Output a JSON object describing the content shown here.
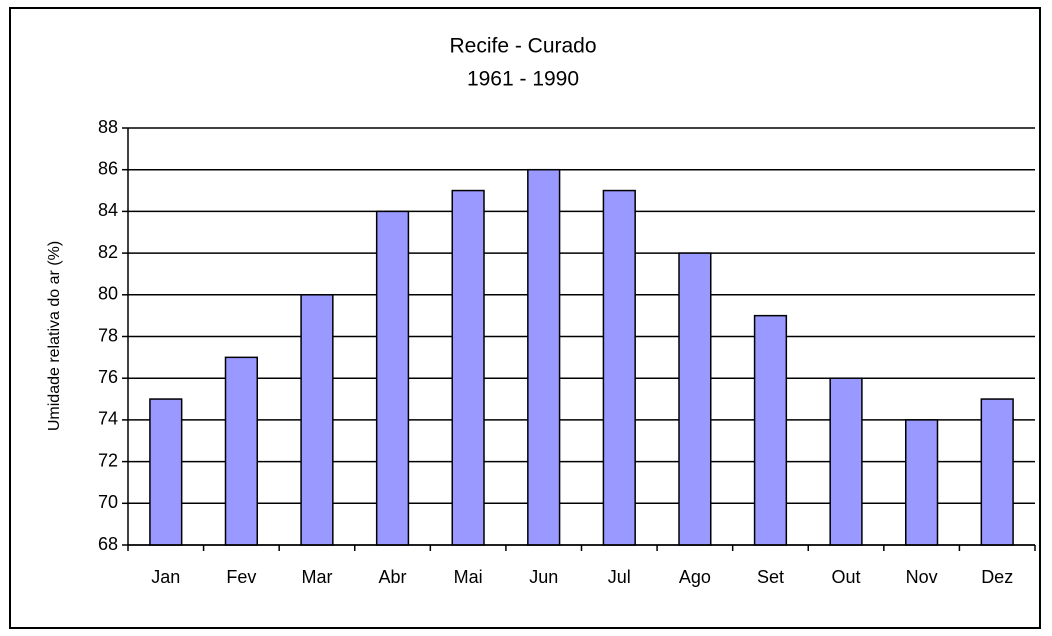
{
  "chart_data": {
    "type": "bar",
    "title": "Recife - Curado",
    "subtitle": "1961 - 1990",
    "y_label": "Umidade relativa do ar (%)",
    "categories": [
      "Jan",
      "Fev",
      "Mar",
      "Abr",
      "Mai",
      "Jun",
      "Jul",
      "Ago",
      "Set",
      "Out",
      "Nov",
      "Dez"
    ],
    "values": [
      75,
      77,
      80,
      84,
      85,
      86,
      85,
      82,
      79,
      76,
      74,
      75
    ],
    "color": "#9999ff",
    "ylim": [
      68,
      88
    ],
    "yticks": [
      68,
      70,
      72,
      74,
      76,
      78,
      80,
      82,
      84,
      86,
      88
    ],
    "grid": true
  }
}
